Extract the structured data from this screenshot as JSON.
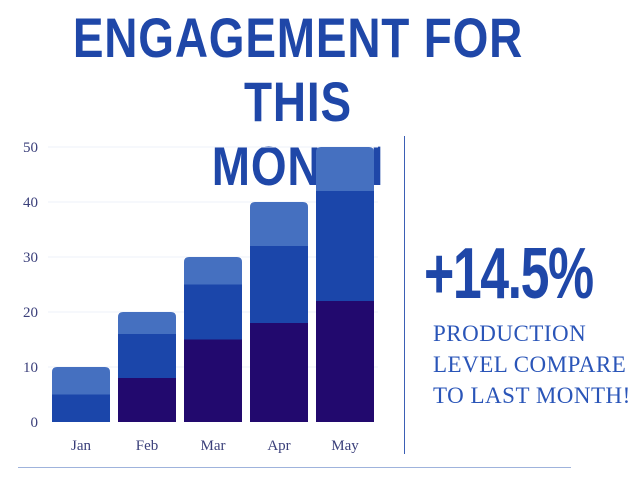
{
  "title": {
    "line1": "ENGAGEMENT FOR THIS",
    "line2": "MONTH"
  },
  "highlight": {
    "value": "+14.5%",
    "caption_lines": [
      "PRODUCTION",
      "LEVEL COMPARE",
      "TO LAST MONTH!"
    ]
  },
  "colors": {
    "accent": "#1f47a8",
    "segment_bottom": "#22096e",
    "segment_middle": "#1b46aa",
    "segment_top": "#4570c0"
  },
  "chart_data": {
    "type": "bar",
    "stacked": true,
    "categories": [
      "Jan",
      "Feb",
      "Mar",
      "Apr",
      "May"
    ],
    "series": [
      {
        "values": [
          0,
          8,
          15,
          18,
          22
        ]
      },
      {
        "values": [
          5,
          8,
          10,
          14,
          20
        ]
      },
      {
        "values": [
          5,
          4,
          5,
          8,
          8
        ]
      }
    ],
    "y_ticks": [
      0,
      10,
      20,
      30,
      40,
      50
    ],
    "ylim": [
      0,
      50
    ],
    "grid": true,
    "legend": "none"
  }
}
